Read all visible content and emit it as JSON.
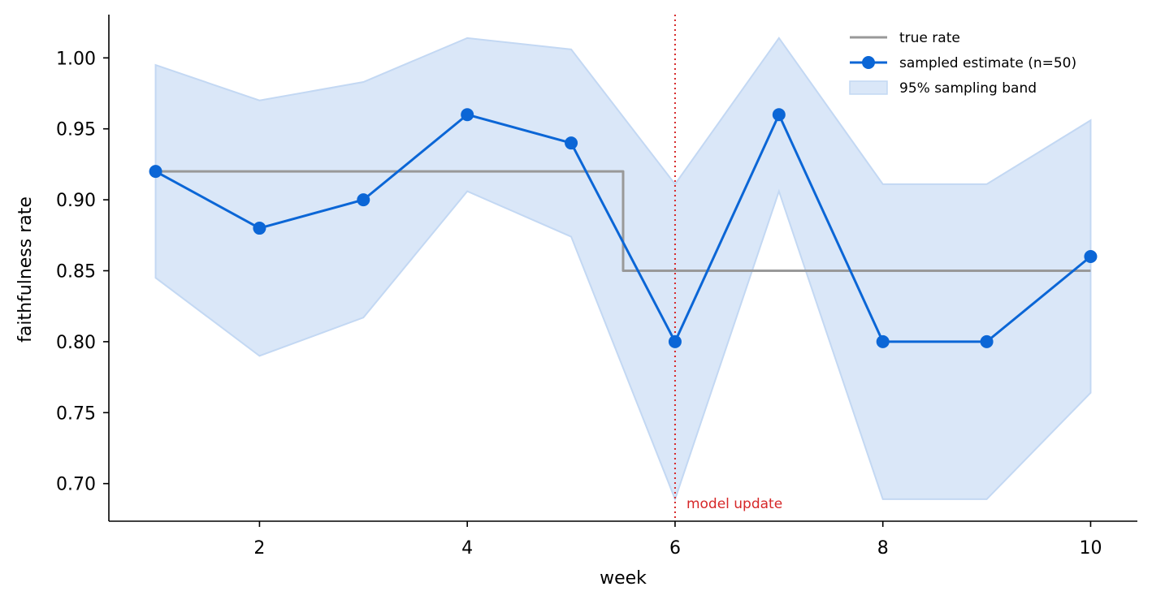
{
  "chart_data": {
    "type": "line",
    "xlabel": "week",
    "ylabel": "faithfulness rate",
    "xlim": [
      0.55,
      10.45
    ],
    "ylim": [
      0.6735,
      1.0305
    ],
    "xticks": [
      2,
      4,
      6,
      8,
      10
    ],
    "xtick_labels": [
      "2",
      "4",
      "6",
      "8",
      "10"
    ],
    "yticks": [
      0.7,
      0.75,
      0.8,
      0.85,
      0.9,
      0.95,
      1.0
    ],
    "ytick_labels": [
      "0.70",
      "0.75",
      "0.80",
      "0.85",
      "0.90",
      "0.95",
      "1.00"
    ],
    "grid": false,
    "legend_position": "top-right",
    "series": [
      {
        "name": "true rate",
        "kind": "step",
        "color": "#999999",
        "x": [
          1,
          5.5,
          5.5,
          10
        ],
        "values": [
          0.92,
          0.92,
          0.85,
          0.85
        ]
      },
      {
        "name": "sampled estimate (n=50)",
        "kind": "line-markers",
        "color": "#0b66d6",
        "x": [
          1,
          2,
          3,
          4,
          5,
          6,
          7,
          8,
          9,
          10
        ],
        "values": [
          0.92,
          0.88,
          0.9,
          0.96,
          0.94,
          0.8,
          0.96,
          0.8,
          0.8,
          0.86
        ]
      }
    ],
    "band": {
      "name": "95% sampling band",
      "fill": "#dae7f8",
      "edge": "#c3d8f3",
      "x": [
        1,
        2,
        3,
        4,
        5,
        6,
        7,
        8,
        9,
        10
      ],
      "lower": [
        0.845,
        0.79,
        0.817,
        0.906,
        0.874,
        0.689,
        0.906,
        0.689,
        0.689,
        0.764
      ],
      "upper": [
        0.995,
        0.97,
        0.983,
        1.014,
        1.006,
        0.911,
        1.014,
        0.911,
        0.911,
        0.956
      ]
    },
    "vline": {
      "x": 6,
      "color": "#d62728",
      "label": "model update"
    }
  }
}
